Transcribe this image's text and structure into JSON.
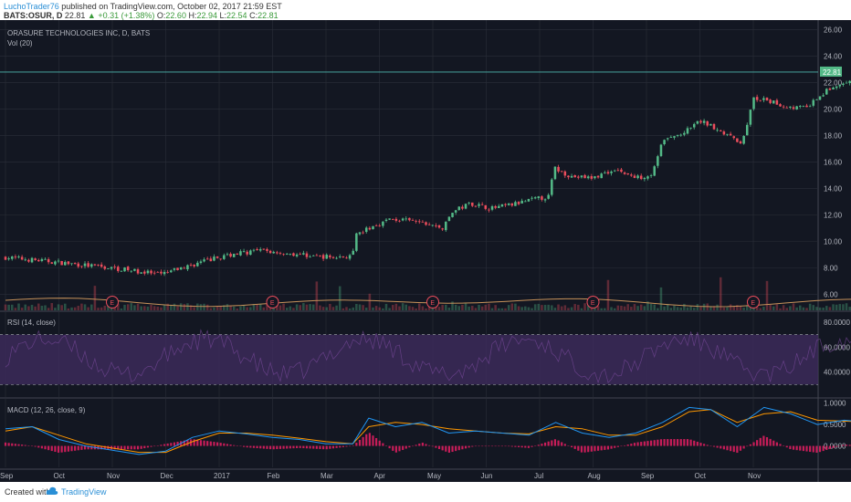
{
  "header": {
    "author": "LuchoTrader76",
    "published_text": "published on TradingView.com, October 02, 2017 21:59 EST",
    "symbol": "BATS:OSUR, D",
    "last": "22.81",
    "change": "+0.31 (+1.38%)",
    "o_label": "O:",
    "o_value": "22.60",
    "h_label": "H:",
    "h_value": "22.94",
    "l_label": "L:",
    "l_value": "22.54",
    "c_label": "C:",
    "c_value": "22.81"
  },
  "footer": {
    "created": "Created with",
    "brand": "TradingView"
  },
  "colors": {
    "background": "#131722",
    "grid": "#2a2e39",
    "up": "#53b987",
    "down": "#eb4d5c",
    "volume_ma": "#c7925a",
    "rsi_band": "#3f2c5e",
    "rsi_line": "#7b4a9c",
    "macd_line": "#2196f3",
    "signal_line": "#ff9800",
    "hist": "#e91e63",
    "current_price_line": "#4db6ac",
    "text": "#b2b5be"
  },
  "chart_data": [
    {
      "type": "candlestick",
      "title": "ORASURE TECHNOLOGIES INC, D, BATS",
      "volume_label": "Vol (20)",
      "current_price_label": "22.81",
      "current_price": 22.81,
      "ylim": [
        4.8,
        26.6
      ],
      "y_ticks": [
        "26.00",
        "24.00",
        "22.00",
        "20.00",
        "18.00",
        "16.00",
        "14.00",
        "12.00",
        "10.00",
        "8.00",
        "6.00"
      ],
      "earnings_marker": "E",
      "earnings_months": [
        2,
        5,
        8,
        11,
        14
      ],
      "path": [
        [
          0,
          8.8
        ],
        [
          0.8,
          8.5
        ],
        [
          1.5,
          8.2
        ],
        [
          2.2,
          7.9
        ],
        [
          2.9,
          7.5
        ],
        [
          3.3,
          8.0
        ],
        [
          3.8,
          8.6
        ],
        [
          4.3,
          9.1
        ],
        [
          4.8,
          9.3
        ],
        [
          5.3,
          9.1
        ],
        [
          5.8,
          8.9
        ],
        [
          6.2,
          8.8
        ],
        [
          6.5,
          8.9
        ],
        [
          6.55,
          10.4
        ],
        [
          6.8,
          11.0
        ],
        [
          7.2,
          11.7
        ],
        [
          7.7,
          11.5
        ],
        [
          8.2,
          11.0
        ],
        [
          8.35,
          12.2
        ],
        [
          8.7,
          12.9
        ],
        [
          9.1,
          12.5
        ],
        [
          9.5,
          12.8
        ],
        [
          9.9,
          13.2
        ],
        [
          10.2,
          13.4
        ],
        [
          10.25,
          15.6
        ],
        [
          10.6,
          14.9
        ],
        [
          11.0,
          14.8
        ],
        [
          11.4,
          15.5
        ],
        [
          11.8,
          14.8
        ],
        [
          12.1,
          15.1
        ],
        [
          12.3,
          17.6
        ],
        [
          12.7,
          18.2
        ],
        [
          13.0,
          19.1
        ],
        [
          13.3,
          18.6
        ],
        [
          13.6,
          17.8
        ],
        [
          13.8,
          17.5
        ],
        [
          14.0,
          20.8
        ],
        [
          14.3,
          20.6
        ],
        [
          14.6,
          20.2
        ],
        [
          15.0,
          20.1
        ],
        [
          15.4,
          21.5
        ],
        [
          15.8,
          22.0
        ],
        [
          16.2,
          21.6
        ],
        [
          16.45,
          22.6
        ],
        [
          16.55,
          22.81
        ]
      ]
    },
    {
      "type": "line",
      "title": "RSI (14, close)",
      "ylim": [
        20,
        88
      ],
      "band": [
        30,
        70
      ],
      "y_ticks": [
        "80.0000",
        "60.0000",
        "40.0000"
      ],
      "y_tick_values": [
        80,
        60,
        40
      ]
    },
    {
      "type": "line",
      "title": "MACD (12, 26, close, 9)",
      "ylim": [
        -0.5,
        1.1
      ],
      "y_ticks": [
        "1.0000",
        "0.5000",
        "0.0000"
      ],
      "y_tick_values": [
        1.0,
        0.5,
        0.0
      ],
      "series": [
        {
          "name": "MACD",
          "points": [
            [
              0,
              0.4
            ],
            [
              0.5,
              0.45
            ],
            [
              1,
              0.15
            ],
            [
              1.5,
              0.0
            ],
            [
              2,
              -0.1
            ],
            [
              2.5,
              -0.2
            ],
            [
              3,
              -0.12
            ],
            [
              3.5,
              0.2
            ],
            [
              4,
              0.35
            ],
            [
              4.5,
              0.28
            ],
            [
              5,
              0.2
            ],
            [
              5.5,
              0.15
            ],
            [
              6,
              0.05
            ],
            [
              6.5,
              0.05
            ],
            [
              6.8,
              0.65
            ],
            [
              7.3,
              0.45
            ],
            [
              7.8,
              0.55
            ],
            [
              8.3,
              0.3
            ],
            [
              8.8,
              0.35
            ],
            [
              9.3,
              0.3
            ],
            [
              9.8,
              0.25
            ],
            [
              10.3,
              0.55
            ],
            [
              10.8,
              0.3
            ],
            [
              11.3,
              0.2
            ],
            [
              11.8,
              0.3
            ],
            [
              12.3,
              0.55
            ],
            [
              12.8,
              0.9
            ],
            [
              13.2,
              0.85
            ],
            [
              13.7,
              0.45
            ],
            [
              14.2,
              0.9
            ],
            [
              14.7,
              0.75
            ],
            [
              15.2,
              0.5
            ],
            [
              15.7,
              0.6
            ],
            [
              16.2,
              0.55
            ],
            [
              16.55,
              0.55
            ]
          ]
        },
        {
          "name": "Signal",
          "points": [
            [
              0,
              0.35
            ],
            [
              0.5,
              0.45
            ],
            [
              1,
              0.25
            ],
            [
              1.5,
              0.05
            ],
            [
              2,
              -0.05
            ],
            [
              2.5,
              -0.15
            ],
            [
              3,
              -0.15
            ],
            [
              3.5,
              0.1
            ],
            [
              4,
              0.3
            ],
            [
              4.5,
              0.3
            ],
            [
              5,
              0.25
            ],
            [
              5.5,
              0.18
            ],
            [
              6,
              0.1
            ],
            [
              6.5,
              0.05
            ],
            [
              6.8,
              0.45
            ],
            [
              7.3,
              0.55
            ],
            [
              7.8,
              0.5
            ],
            [
              8.3,
              0.4
            ],
            [
              8.8,
              0.35
            ],
            [
              9.3,
              0.3
            ],
            [
              9.8,
              0.28
            ],
            [
              10.3,
              0.45
            ],
            [
              10.8,
              0.4
            ],
            [
              11.3,
              0.25
            ],
            [
              11.8,
              0.25
            ],
            [
              12.3,
              0.45
            ],
            [
              12.8,
              0.8
            ],
            [
              13.2,
              0.85
            ],
            [
              13.7,
              0.55
            ],
            [
              14.2,
              0.75
            ],
            [
              14.7,
              0.8
            ],
            [
              15.2,
              0.6
            ],
            [
              15.7,
              0.58
            ],
            [
              16.2,
              0.55
            ],
            [
              16.55,
              0.55
            ]
          ]
        }
      ]
    }
  ],
  "x_axis": {
    "labels": [
      "Sep",
      "Oct",
      "Nov",
      "Dec",
      "2017",
      "Feb",
      "Mar",
      "Apr",
      "May",
      "Jun",
      "Jul",
      "Aug",
      "Sep",
      "Oct",
      "Nov"
    ],
    "positions": [
      0,
      1,
      2,
      3,
      4,
      5,
      6,
      7,
      8,
      9,
      10,
      11,
      12,
      13,
      14
    ],
    "ticks_months_from_sep2016": [
      0,
      1,
      2,
      3,
      4,
      5,
      6,
      7,
      8,
      9,
      10,
      11,
      12,
      13,
      14
    ]
  }
}
